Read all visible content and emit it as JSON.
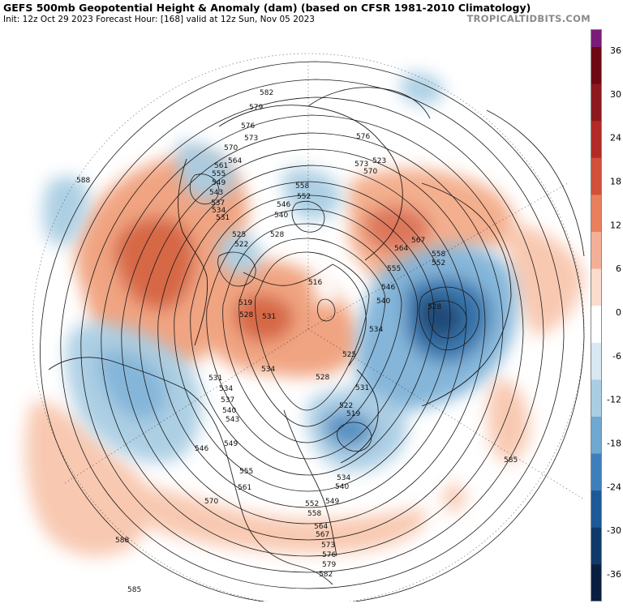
{
  "header": {
    "title": "GEFS 500mb Geopotential Height & Anomaly (dam) (based on CFSR 1981-2010 Climatology)",
    "subtitle": "Init: 12z Oct 29 2023   Forecast Hour: [168]   valid at 12z Sun, Nov 05 2023",
    "credit": "TROPICALTIDBITS.COM"
  },
  "colorbar": {
    "labels": [
      "36",
      "30",
      "24",
      "18",
      "12",
      "6",
      "0",
      "-6",
      "-12",
      "-18",
      "-24",
      "-30",
      "-36"
    ],
    "colors": [
      "#7a1c7a",
      "#6e0a14",
      "#8c1a1e",
      "#b22a26",
      "#d0503a",
      "#e8805e",
      "#f4b096",
      "#fbdccd",
      "#ffffff",
      "#d7e8f2",
      "#a9cde3",
      "#6fa8d0",
      "#3d7fba",
      "#1d5996",
      "#103a6a",
      "#0a1f40"
    ]
  },
  "map": {
    "contour_labels": [
      {
        "text": "582"
      },
      {
        "text": "579"
      },
      {
        "text": "576"
      },
      {
        "text": "573"
      },
      {
        "text": "570"
      },
      {
        "text": "564"
      },
      {
        "text": "561"
      },
      {
        "text": "555"
      },
      {
        "text": "549"
      },
      {
        "text": "543"
      },
      {
        "text": "537"
      },
      {
        "text": "534"
      },
      {
        "text": "531"
      },
      {
        "text": "525"
      },
      {
        "text": "522"
      },
      {
        "text": "528"
      },
      {
        "text": "540"
      },
      {
        "text": "546"
      },
      {
        "text": "552"
      },
      {
        "text": "558"
      },
      {
        "text": "576"
      },
      {
        "text": "573"
      },
      {
        "text": "570"
      },
      {
        "text": "523"
      },
      {
        "text": "588"
      },
      {
        "text": "519"
      },
      {
        "text": "528"
      },
      {
        "text": "531"
      },
      {
        "text": "534"
      },
      {
        "text": "516"
      },
      {
        "text": "534"
      },
      {
        "text": "528"
      },
      {
        "text": "525"
      },
      {
        "text": "531"
      },
      {
        "text": "522"
      },
      {
        "text": "519"
      },
      {
        "text": "564"
      },
      {
        "text": "567"
      },
      {
        "text": "555"
      },
      {
        "text": "558"
      },
      {
        "text": "552"
      },
      {
        "text": "546"
      },
      {
        "text": "540"
      },
      {
        "text": "528"
      },
      {
        "text": "531"
      },
      {
        "text": "534"
      },
      {
        "text": "537"
      },
      {
        "text": "540"
      },
      {
        "text": "543"
      },
      {
        "text": "546"
      },
      {
        "text": "549"
      },
      {
        "text": "555"
      },
      {
        "text": "561"
      },
      {
        "text": "570"
      },
      {
        "text": "534"
      },
      {
        "text": "540"
      },
      {
        "text": "549"
      },
      {
        "text": "552"
      },
      {
        "text": "558"
      },
      {
        "text": "564"
      },
      {
        "text": "567"
      },
      {
        "text": "573"
      },
      {
        "text": "576"
      },
      {
        "text": "579"
      },
      {
        "text": "582"
      },
      {
        "text": "588"
      },
      {
        "text": "585"
      },
      {
        "text": "585"
      },
      {
        "text": "585"
      }
    ]
  }
}
